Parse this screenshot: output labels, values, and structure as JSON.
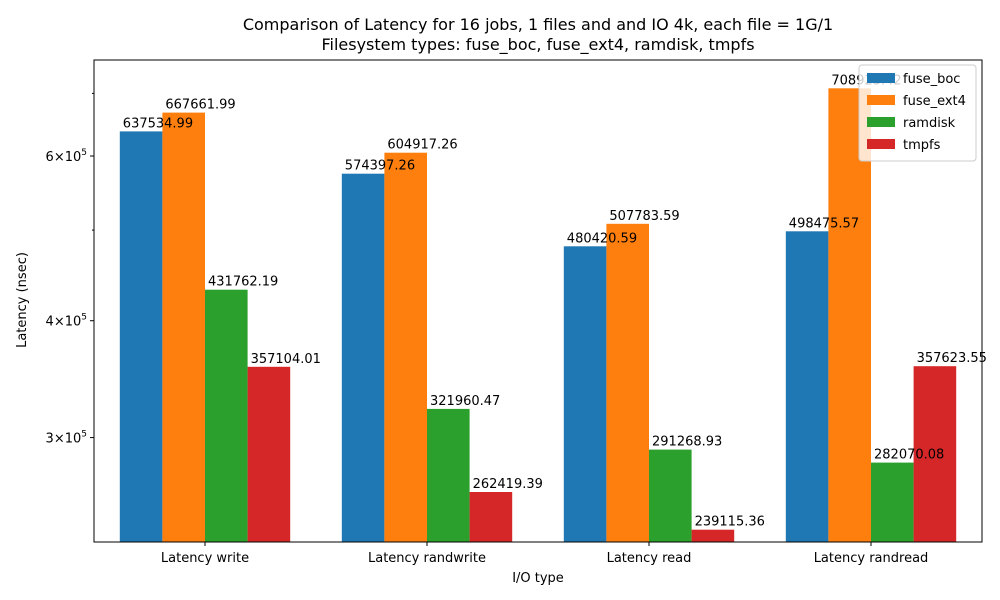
{
  "chart_data": {
    "type": "bar",
    "title_line1": "Comparison of Latency for 16 jobs, 1 files and  and IO 4k, each file = 1G/1",
    "title_line2": "Filesystem types: fuse_boc, fuse_ext4, ramdisk, tmpfs",
    "xlabel": "I/O type",
    "ylabel": "Latency (nsec)",
    "yscale": "log",
    "ylim": [
      232000,
      760000
    ],
    "yticks": [
      {
        "value": 300000,
        "mantissa": "3",
        "base": "10",
        "exp": "5"
      },
      {
        "value": 400000,
        "mantissa": "4",
        "base": "10",
        "exp": "5"
      },
      {
        "value": 600000,
        "mantissa": "6",
        "base": "10",
        "exp": "5"
      }
    ],
    "minor_yticks": [
      500000,
      700000
    ],
    "categories": [
      "Latency write",
      "Latency randwrite",
      "Latency read",
      "Latency randread"
    ],
    "series": [
      {
        "name": "fuse_boc",
        "color": "#1f77b4",
        "values": [
          637534.99,
          574397.26,
          480420.59,
          498475.57
        ],
        "labels": [
          "637534.99",
          "574397.26",
          "480420.59",
          "498475.57"
        ]
      },
      {
        "name": "fuse_ext4",
        "color": "#ff7f0e",
        "values": [
          667661.99,
          604917.26,
          507783.59,
          708923.42
        ],
        "labels": [
          "667661.99",
          "604917.26",
          "507783.59",
          "708923.42"
        ]
      },
      {
        "name": "ramdisk",
        "color": "#2ca02c",
        "values": [
          431762.19,
          321960.47,
          291268.93,
          282070.08
        ],
        "labels": [
          "431762.19",
          "321960.47",
          "291268.93",
          "282070.08"
        ]
      },
      {
        "name": "tmpfs",
        "color": "#d62728",
        "values": [
          357104.01,
          262419.39,
          239115.36,
          357623.55
        ],
        "labels": [
          "357104.01",
          "262419.39",
          "239115.36",
          "357623.55"
        ]
      }
    ],
    "legend_position": "top-right",
    "grid": false
  }
}
